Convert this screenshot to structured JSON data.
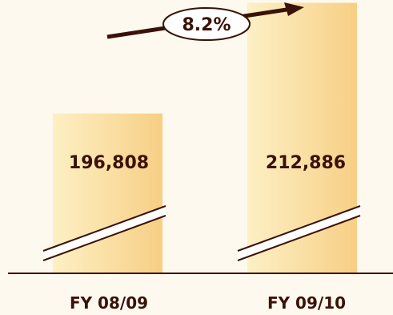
{
  "chart_data": {
    "type": "bar",
    "categories": [
      "FY 08/09",
      "FY 09/10"
    ],
    "values": [
      196808,
      212886
    ],
    "value_labels": [
      "196,808",
      "212,886"
    ],
    "axis_break": true,
    "growth_annotation": "8.2%",
    "title": "",
    "xlabel": "",
    "ylabel": "",
    "grid": false,
    "legend": "none"
  },
  "colors": {
    "background": "#fdf9ee",
    "bar_light": "#fdf0c4",
    "bar_dark": "#f7cf85",
    "text": "#3a1208",
    "axis": "#3a1208",
    "arrow": "#3a1208"
  }
}
